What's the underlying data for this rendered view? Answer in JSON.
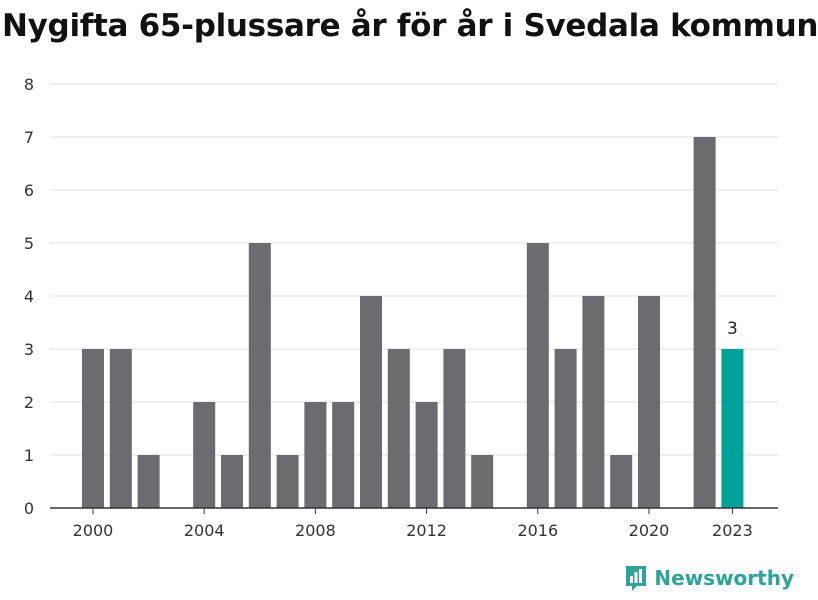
{
  "title": "Nygifta 65-plussare år för år i Svedala kommun",
  "brand": {
    "name": "Newsworthy",
    "icon": "newsworthy-logo-icon",
    "color": "#2fa39a"
  },
  "colors": {
    "bar": "#6b6b70",
    "highlight": "#00a19a",
    "grid": "#dddddd",
    "axis": "#333333"
  },
  "chart_data": {
    "type": "bar",
    "title": "Nygifta 65-plussare år för år i Svedala kommun",
    "xlabel": "",
    "ylabel": "",
    "categories": [
      "2000",
      "2001",
      "2002",
      "2003",
      "2004",
      "2005",
      "2006",
      "2007",
      "2008",
      "2009",
      "2010",
      "2011",
      "2012",
      "2013",
      "2014",
      "2015",
      "2016",
      "2017",
      "2018",
      "2019",
      "2020",
      "2021",
      "2022",
      "2023"
    ],
    "values": [
      3,
      3,
      1,
      0,
      2,
      1,
      5,
      1,
      2,
      2,
      4,
      3,
      2,
      3,
      1,
      0,
      5,
      3,
      4,
      1,
      4,
      0,
      7,
      3
    ],
    "highlight_index": 23,
    "data_labels": [
      {
        "index": 23,
        "text": "3"
      }
    ],
    "x_tick_labels": [
      "2000",
      "2004",
      "2008",
      "2012",
      "2016",
      "2020",
      "2023"
    ],
    "y_ticks": [
      "0",
      "1",
      "2",
      "3",
      "4",
      "5",
      "6",
      "7",
      "8"
    ],
    "ylim": [
      0,
      8
    ],
    "grid": true,
    "legend": "none"
  }
}
